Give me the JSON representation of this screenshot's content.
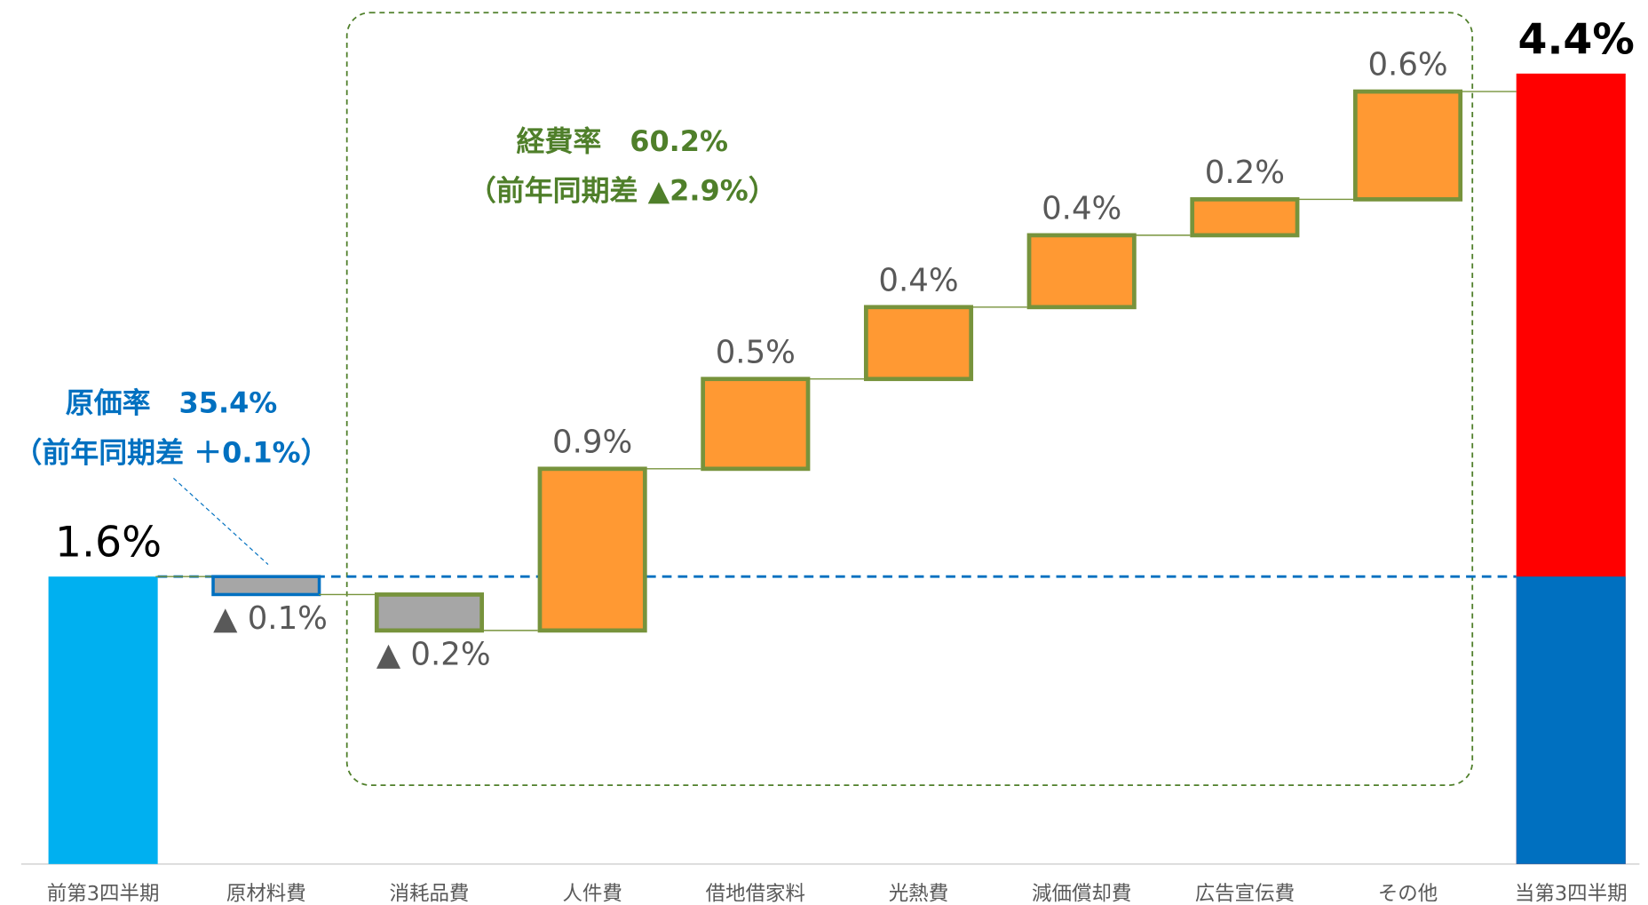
{
  "chart_data": {
    "type": "waterfall",
    "categories": [
      "前第3四半期",
      "原材料費",
      "消耗品費",
      "人件費",
      "借地借家料",
      "光熱費",
      "減価償却費",
      "広告宣伝費",
      "その他",
      "当第3四半期"
    ],
    "values": [
      1.6,
      -0.1,
      -0.2,
      0.9,
      0.5,
      0.4,
      0.4,
      0.2,
      0.6,
      4.4
    ],
    "value_labels": [
      "1.6%",
      "▲ 0.1%",
      "▲ 0.2%",
      "0.9%",
      "0.5%",
      "0.4%",
      "0.4%",
      "0.2%",
      "0.6%",
      "4.4%"
    ],
    "colors": [
      "#00b0f0",
      "#a6a6a6",
      "#a6a6a6",
      "#ff9933",
      "#ff9933",
      "#ff9933",
      "#ff9933",
      "#ff9933",
      "#ff9933",
      "#ff0000"
    ],
    "edge_colors": [
      null,
      "#0070c0",
      "#77933c",
      "#77933c",
      "#77933c",
      "#77933c",
      "#77933c",
      "#77933c",
      "#77933c",
      null
    ],
    "annotations": [
      "経費率　60.2%",
      "（前年同期差 ▲2.9%）",
      "原価率　35.4%",
      "（前年同期差 ＋0.1%）"
    ]
  }
}
